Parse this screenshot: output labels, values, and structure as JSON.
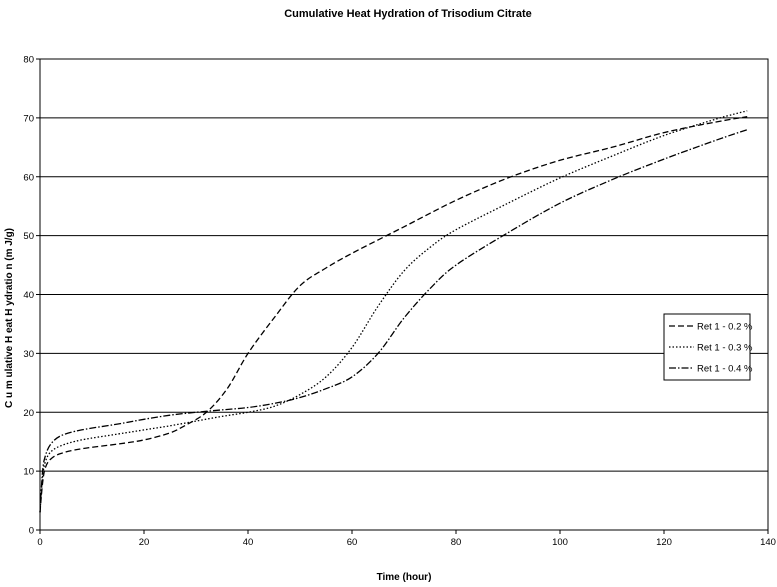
{
  "chart_data": {
    "type": "line",
    "title": "Cumulative Heat Hydration of Trisodium Citrate",
    "xlabel": "Time (hour)",
    "ylabel": "C u m ulative  H eat  H ydratio n  (m J/g)",
    "xlim": [
      0,
      140
    ],
    "ylim": [
      0,
      80
    ],
    "x_ticks": [
      "0",
      "20",
      "40",
      "60",
      "80",
      "100",
      "120",
      "140"
    ],
    "y_ticks": [
      "0",
      "10",
      "20",
      "30",
      "40",
      "50",
      "60",
      "70",
      "80"
    ],
    "grid": "horizontal",
    "legend_position": "right",
    "series": [
      {
        "name": "Ret 1 - 0.2 %",
        "dash": "6,3",
        "points": [
          [
            0,
            3
          ],
          [
            0.5,
            8
          ],
          [
            1,
            10.5
          ],
          [
            2,
            12
          ],
          [
            4,
            13
          ],
          [
            8,
            13.8
          ],
          [
            15,
            14.6
          ],
          [
            20,
            15.3
          ],
          [
            25,
            16.5
          ],
          [
            28,
            17.8
          ],
          [
            32,
            20
          ],
          [
            36,
            24
          ],
          [
            40,
            30
          ],
          [
            45,
            36
          ],
          [
            50,
            41.5
          ],
          [
            55,
            44.5
          ],
          [
            60,
            47
          ],
          [
            70,
            51.5
          ],
          [
            80,
            56
          ],
          [
            90,
            59.8
          ],
          [
            100,
            62.8
          ],
          [
            110,
            65
          ],
          [
            120,
            67.5
          ],
          [
            130,
            69.3
          ],
          [
            136,
            70.2
          ]
        ]
      },
      {
        "name": "Ret 1 - 0.3 %",
        "dash": "1.5,2",
        "points": [
          [
            0,
            3
          ],
          [
            0.5,
            9
          ],
          [
            1,
            11.5
          ],
          [
            2,
            13.2
          ],
          [
            4,
            14.3
          ],
          [
            8,
            15.3
          ],
          [
            15,
            16.3
          ],
          [
            20,
            17
          ],
          [
            25,
            17.7
          ],
          [
            30,
            18.5
          ],
          [
            35,
            19.3
          ],
          [
            40,
            20
          ],
          [
            45,
            21
          ],
          [
            50,
            23
          ],
          [
            55,
            26
          ],
          [
            60,
            31
          ],
          [
            65,
            38
          ],
          [
            70,
            44
          ],
          [
            75,
            48
          ],
          [
            80,
            51
          ],
          [
            90,
            55.5
          ],
          [
            100,
            59.8
          ],
          [
            110,
            63.5
          ],
          [
            120,
            67
          ],
          [
            130,
            69.8
          ],
          [
            136,
            71.2
          ]
        ]
      },
      {
        "name": "Ret 1 - 0.4 %",
        "dash": "7,2,1.5,2",
        "points": [
          [
            0,
            3
          ],
          [
            0.5,
            10
          ],
          [
            1,
            12.5
          ],
          [
            2,
            14.5
          ],
          [
            4,
            16
          ],
          [
            8,
            17
          ],
          [
            15,
            18
          ],
          [
            20,
            18.8
          ],
          [
            25,
            19.5
          ],
          [
            30,
            20
          ],
          [
            35,
            20.4
          ],
          [
            40,
            20.8
          ],
          [
            45,
            21.5
          ],
          [
            50,
            22.5
          ],
          [
            55,
            24
          ],
          [
            60,
            26
          ],
          [
            65,
            30
          ],
          [
            70,
            36
          ],
          [
            75,
            41
          ],
          [
            80,
            45
          ],
          [
            90,
            50.5
          ],
          [
            100,
            55.5
          ],
          [
            110,
            59.5
          ],
          [
            120,
            63
          ],
          [
            130,
            66.2
          ],
          [
            136,
            68
          ]
        ]
      }
    ]
  }
}
